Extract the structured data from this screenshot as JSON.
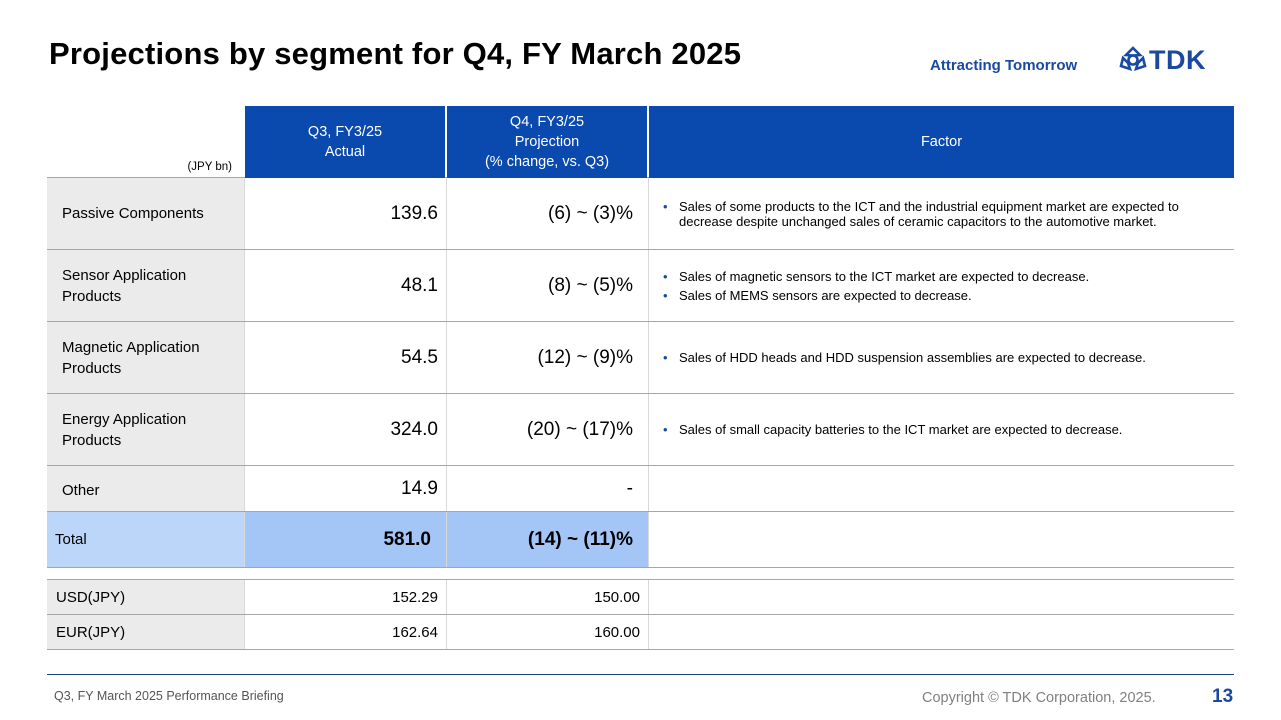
{
  "page": {
    "title": "Projections by segment for Q4, FY March 2025",
    "tagline": "Attracting Tomorrow",
    "logo_text": "TDK",
    "logo_icon": "tdk-triskelion-logo",
    "brand_color": "#1a4aa0"
  },
  "table": {
    "unit_label": "(JPY bn)",
    "headers": {
      "col1_line1": "Q3, FY3/25",
      "col1_line2": "Actual",
      "col2_line1": "Q4, FY3/25",
      "col2_line2": "Projection",
      "col2_line3": "(% change, vs. Q3)",
      "col3": "Factor"
    },
    "header_color": "#0a49ad",
    "rows": [
      {
        "segment_line1": "Passive  Components",
        "segment_line2": "",
        "actual": "139.6",
        "projection": "(6) ~ (3)%",
        "factors": [
          "Sales of some products to the ICT and the industrial equipment market are expected to decrease despite unchanged sales of ceramic capacitors to the automotive market."
        ]
      },
      {
        "segment_line1": "Sensor Application",
        "segment_line2": "Products",
        "actual": "48.1",
        "projection": "(8) ~ (5)%",
        "factors": [
          "Sales of magnetic sensors to the ICT market are expected to decrease.",
          "Sales of MEMS  sensors are expected to decrease."
        ]
      },
      {
        "segment_line1": "Magnetic  Application",
        "segment_line2": "Products",
        "actual": "54.5",
        "projection": "(12) ~ (9)%",
        "factors": [
          "Sales of HDD heads and HDD suspension assemblies are expected to decrease."
        ]
      },
      {
        "segment_line1": "Energy Application",
        "segment_line2": "Products",
        "actual": "324.0",
        "projection": "(20) ~ (17)%",
        "factors": [
          "Sales of small capacity batteries to the ICT market are expected to decrease."
        ]
      },
      {
        "segment_line1": "Other",
        "segment_line2": "",
        "actual": "14.9",
        "projection": "-",
        "factors": []
      }
    ],
    "total": {
      "label": "Total",
      "actual": "581.0",
      "projection": "(14) ~ (11)%"
    },
    "fx": [
      {
        "label": "USD(JPY)",
        "actual": "152.29",
        "projection": "150.00"
      },
      {
        "label": "EUR(JPY)",
        "actual": "162.64",
        "projection": "160.00"
      }
    ]
  },
  "footer": {
    "left": "Q3, FY March 2025 Performance  Briefing",
    "copyright": "Copyright   © TDK Corporation, 2025.",
    "page_number": "13"
  }
}
